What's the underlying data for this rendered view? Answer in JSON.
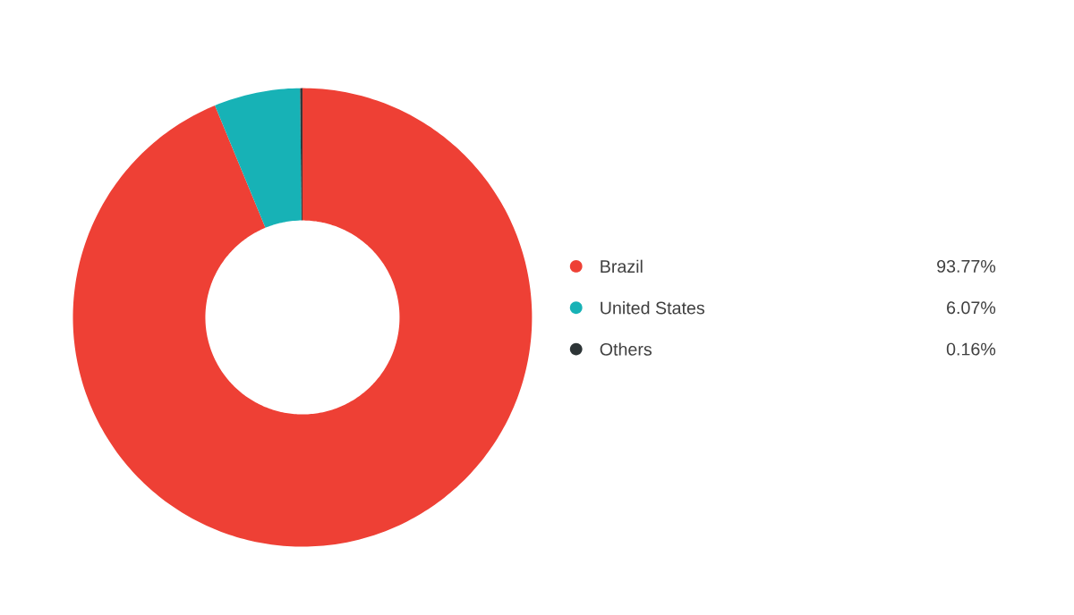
{
  "chart_data": {
    "type": "donut",
    "categories": [
      "Brazil",
      "United States",
      "Others"
    ],
    "values": [
      93.77,
      6.07,
      0.16
    ],
    "colors": [
      "#ee4035",
      "#17b2b6",
      "#2d3436"
    ],
    "value_labels": [
      "93.77%",
      "6.07%",
      "0.16%"
    ],
    "legend": "right"
  }
}
